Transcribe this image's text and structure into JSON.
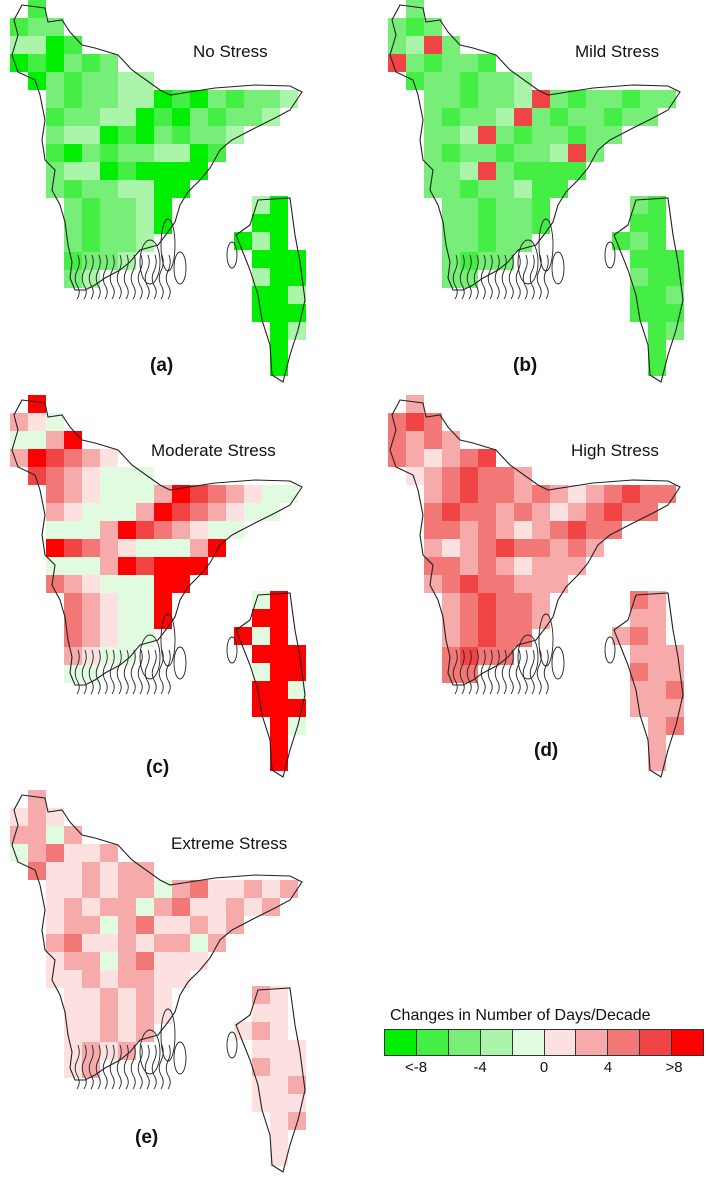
{
  "panels": [
    {
      "id": "a",
      "title": "No Stress",
      "label": "(a)",
      "palette": [
        3,
        3,
        2,
        2,
        1,
        2,
        0,
        1,
        0
      ],
      "base": 3,
      "east": 0
    },
    {
      "id": "b",
      "title": "Mild Stress",
      "label": "(b)",
      "palette": [
        3,
        2,
        2,
        1,
        2,
        2,
        1,
        2,
        8
      ],
      "base": 2,
      "east": 1
    },
    {
      "id": "c",
      "title": "Moderate Stress",
      "label": "(c)",
      "palette": [
        4,
        4,
        4,
        5,
        6,
        7,
        8,
        9,
        6
      ],
      "base": 4,
      "east": 9
    },
    {
      "id": "d",
      "title": "High Stress",
      "label": "(d)",
      "palette": [
        6,
        7,
        7,
        8,
        7,
        6,
        5,
        6,
        7
      ],
      "base": 7,
      "east": 6
    },
    {
      "id": "e",
      "title": "Extreme Stress",
      "label": "(e)",
      "palette": [
        6,
        6,
        5,
        6,
        5,
        5,
        7,
        6,
        4
      ],
      "base": 6,
      "east": 5
    }
  ],
  "legend": {
    "title": "Changes in Number of Days/Decade",
    "colors": [
      "#00ee00",
      "#44ee44",
      "#77ee77",
      "#aaf5aa",
      "#e0fbe0",
      "#fde0e0",
      "#f6aaaa",
      "#f27777",
      "#f14444",
      "#ff0000"
    ],
    "tick_labels": [
      "<-8",
      "-4",
      "0",
      "4",
      ">8"
    ]
  }
}
